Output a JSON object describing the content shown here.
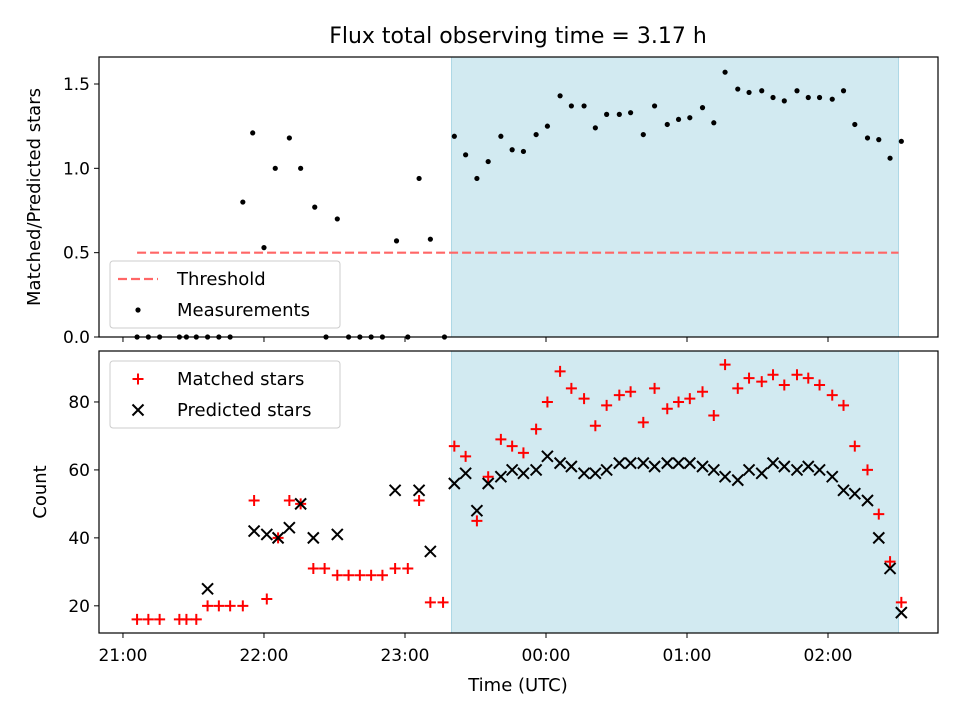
{
  "title": "Flux total observing time = 3.17 h",
  "xlabel": "Time (UTC)",
  "colors": {
    "shade": "#add8e6",
    "threshold": "#ff6666",
    "measurements": "#000000",
    "matched": "#ff0000",
    "predicted": "#000000"
  },
  "chart_data": [
    {
      "type": "scatter",
      "title": "Flux total observing time = 3.17 h",
      "xlabel": "",
      "ylabel": "Matched/Predicted stars",
      "x_unit": "hours after 21:00 UTC",
      "xlim": [
        -0.17,
        5.78
      ],
      "ylim": [
        0.0,
        1.66
      ],
      "xticks": [
        {
          "v": 0,
          "label": "21:00"
        },
        {
          "v": 1,
          "label": "22:00"
        },
        {
          "v": 2,
          "label": "23:00"
        },
        {
          "v": 3,
          "label": "00:00"
        },
        {
          "v": 4,
          "label": "01:00"
        },
        {
          "v": 5,
          "label": "02:00"
        }
      ],
      "yticks": [
        {
          "v": 0.0,
          "label": "0.0"
        },
        {
          "v": 0.5,
          "label": "0.5"
        },
        {
          "v": 1.0,
          "label": "1.0"
        },
        {
          "v": 1.5,
          "label": "1.5"
        }
      ],
      "observing_window": [
        2.33,
        5.5
      ],
      "threshold": {
        "name": "Threshold",
        "value": 0.5,
        "x_range": [
          0.1,
          5.5
        ]
      },
      "legend": {
        "position": "lower-left",
        "entries": [
          "Threshold",
          "Measurements"
        ]
      },
      "series": [
        {
          "name": "Measurements",
          "x": [
            0.1,
            0.18,
            0.26,
            0.4,
            0.45,
            0.52,
            0.6,
            0.68,
            0.76,
            0.85,
            0.92,
            1.0,
            1.08,
            1.18,
            1.26,
            1.36,
            1.44,
            1.52,
            1.6,
            1.68,
            1.76,
            1.84,
            1.94,
            2.02,
            2.1,
            2.18,
            2.28,
            2.35,
            2.43,
            2.51,
            2.59,
            2.68,
            2.76,
            2.84,
            2.93,
            3.01,
            3.1,
            3.18,
            3.27,
            3.35,
            3.43,
            3.52,
            3.6,
            3.69,
            3.77,
            3.86,
            3.94,
            4.02,
            4.11,
            4.19,
            4.27,
            4.36,
            4.44,
            4.53,
            4.61,
            4.69,
            4.78,
            4.86,
            4.94,
            5.03,
            5.11,
            5.19,
            5.28,
            5.36,
            5.44,
            5.52
          ],
          "values": [
            0.0,
            0.0,
            0.0,
            0.0,
            0.0,
            0.0,
            0.0,
            0.0,
            0.0,
            0.8,
            1.21,
            0.53,
            1.0,
            1.18,
            1.0,
            0.77,
            0.0,
            0.7,
            0.0,
            0.0,
            0.0,
            0.0,
            0.57,
            0.0,
            0.94,
            0.58,
            0.0,
            1.19,
            1.08,
            0.94,
            1.04,
            1.19,
            1.11,
            1.1,
            1.2,
            1.25,
            1.43,
            1.37,
            1.37,
            1.24,
            1.32,
            1.32,
            1.33,
            1.2,
            1.37,
            1.26,
            1.29,
            1.3,
            1.36,
            1.27,
            1.57,
            1.47,
            1.45,
            1.46,
            1.42,
            1.4,
            1.46,
            1.42,
            1.42,
            1.41,
            1.46,
            1.26,
            1.18,
            1.17,
            1.06,
            1.16
          ]
        }
      ]
    },
    {
      "type": "scatter",
      "title": "",
      "xlabel": "Time (UTC)",
      "ylabel": "Count",
      "x_unit": "hours after 21:00 UTC",
      "xlim": [
        -0.17,
        5.78
      ],
      "ylim": [
        12,
        95
      ],
      "xticks": [
        {
          "v": 0,
          "label": "21:00"
        },
        {
          "v": 1,
          "label": "22:00"
        },
        {
          "v": 2,
          "label": "23:00"
        },
        {
          "v": 3,
          "label": "00:00"
        },
        {
          "v": 4,
          "label": "01:00"
        },
        {
          "v": 5,
          "label": "02:00"
        }
      ],
      "yticks": [
        {
          "v": 20,
          "label": "20"
        },
        {
          "v": 40,
          "label": "40"
        },
        {
          "v": 60,
          "label": "60"
        },
        {
          "v": 80,
          "label": "80"
        }
      ],
      "observing_window": [
        2.33,
        5.5
      ],
      "legend": {
        "position": "top-left",
        "entries": [
          "Matched stars",
          "Predicted stars"
        ]
      },
      "series": [
        {
          "name": "Matched stars",
          "marker": "+",
          "x": [
            0.1,
            0.18,
            0.26,
            0.4,
            0.45,
            0.52,
            0.6,
            0.68,
            0.76,
            0.85,
            0.93,
            1.02,
            1.1,
            1.18,
            1.26,
            1.35,
            1.43,
            1.52,
            1.6,
            1.68,
            1.76,
            1.84,
            1.93,
            2.02,
            2.1,
            2.18,
            2.27,
            2.35,
            2.43,
            2.51,
            2.59,
            2.68,
            2.76,
            2.84,
            2.93,
            3.01,
            3.1,
            3.18,
            3.27,
            3.35,
            3.43,
            3.52,
            3.6,
            3.69,
            3.77,
            3.86,
            3.94,
            4.02,
            4.11,
            4.19,
            4.27,
            4.36,
            4.44,
            4.53,
            4.61,
            4.69,
            4.78,
            4.86,
            4.94,
            5.03,
            5.11,
            5.19,
            5.28,
            5.36,
            5.44,
            5.52
          ],
          "values": [
            16,
            16,
            16,
            16,
            16,
            16,
            20,
            20,
            20,
            20,
            51,
            22,
            40,
            51,
            50,
            31,
            31,
            29,
            29,
            29,
            29,
            29,
            31,
            31,
            51,
            21,
            21,
            67,
            64,
            45,
            58,
            69,
            67,
            65,
            72,
            80,
            89,
            84,
            81,
            73,
            79,
            82,
            83,
            74,
            84,
            78,
            80,
            81,
            83,
            76,
            91,
            84,
            87,
            86,
            88,
            85,
            88,
            87,
            85,
            82,
            79,
            67,
            60,
            47,
            33,
            21
          ]
        },
        {
          "name": "Predicted stars",
          "marker": "x",
          "x": [
            0.6,
            0.93,
            1.02,
            1.1,
            1.18,
            1.26,
            1.35,
            1.52,
            1.93,
            2.1,
            2.18,
            2.35,
            2.43,
            2.51,
            2.59,
            2.68,
            2.76,
            2.84,
            2.93,
            3.01,
            3.1,
            3.18,
            3.27,
            3.35,
            3.43,
            3.52,
            3.6,
            3.69,
            3.77,
            3.86,
            3.94,
            4.02,
            4.11,
            4.19,
            4.27,
            4.36,
            4.44,
            4.53,
            4.61,
            4.69,
            4.78,
            4.86,
            4.94,
            5.03,
            5.11,
            5.19,
            5.28,
            5.36,
            5.44,
            5.52
          ],
          "values": [
            25,
            42,
            41,
            40,
            43,
            50,
            40,
            41,
            54,
            54,
            36,
            56,
            59,
            48,
            56,
            58,
            60,
            59,
            60,
            64,
            62,
            61,
            59,
            59,
            60,
            62,
            62,
            62,
            61,
            62,
            62,
            62,
            61,
            60,
            58,
            57,
            60,
            59,
            62,
            61,
            60,
            61,
            60,
            58,
            54,
            53,
            51,
            40,
            31,
            18
          ]
        }
      ]
    }
  ]
}
